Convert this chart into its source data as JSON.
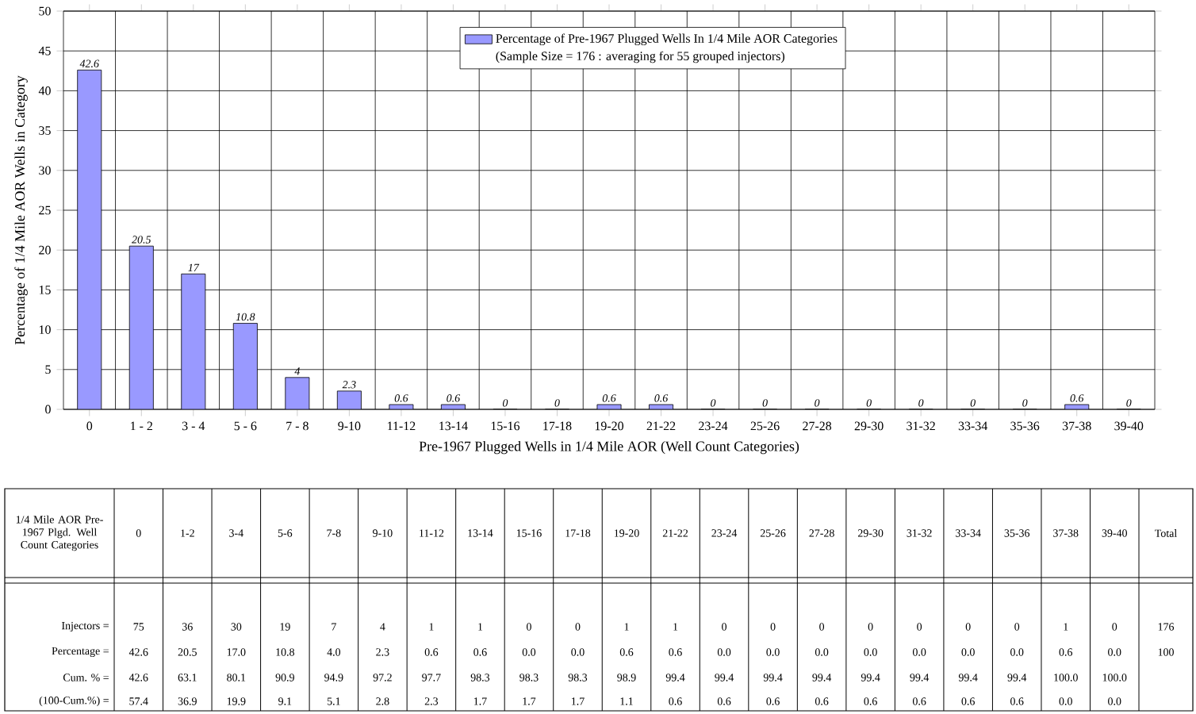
{
  "chart_data": {
    "type": "bar",
    "xlabel": "Pre-1967 Plugged Wells in 1/4 Mile AOR (Well Count Categories)",
    "ylabel": "Percentage of 1/4 Mile AOR Wells in Category",
    "categories": [
      "0",
      "1 - 2",
      "3 - 4",
      "5 - 6",
      "7 - 8",
      "9-10",
      "11-12",
      "13-14",
      "15-16",
      "17-18",
      "19-20",
      "21-22",
      "23-24",
      "25-26",
      "27-28",
      "29-30",
      "31-32",
      "33-34",
      "35-36",
      "37-38",
      "39-40"
    ],
    "series": [
      {
        "name": "Percentage of Pre-1967 Plugged Wells In 1/4 Mile AOR Categories",
        "color": "#9999ff",
        "values": [
          42.6,
          20.5,
          17,
          10.8,
          4,
          2.3,
          0.6,
          0.6,
          0,
          0,
          0.6,
          0.6,
          0,
          0,
          0,
          0,
          0,
          0,
          0,
          0.6,
          0
        ],
        "value_labels": [
          "42.6",
          "20.5",
          "17",
          "10.8",
          "4",
          "2.3",
          "0.6",
          "0.6",
          "0",
          "0",
          "0.6",
          "0.6",
          "0",
          "0",
          "0",
          "0",
          "0",
          "0",
          "0",
          "0.6",
          "0"
        ]
      }
    ],
    "ylim": [
      0,
      50
    ],
    "yticks": [
      0,
      5,
      10,
      15,
      20,
      25,
      30,
      35,
      40,
      45,
      50
    ],
    "grid": true,
    "legend": "top",
    "annotations": [
      "(Sample Size = 176 : averaging for 55 grouped injectors)",
      "1/4 Mile AOR Pre-1967 Plgd. Well Count Categories",
      "0",
      "1-2",
      "3-4",
      "5-6",
      "7-8",
      "9-10",
      "11-12",
      "13-14",
      "15-16",
      "17-18",
      "19-20",
      "21-22",
      "23-24",
      "25-26",
      "27-28",
      "29-30",
      "31-32",
      "33-34",
      "35-36",
      "37-38",
      "39-40",
      "Total",
      "Injectors =",
      "75",
      "36",
      "30",
      "19",
      "7",
      "4",
      "1",
      "1",
      "0",
      "0",
      "1",
      "1",
      "0",
      "0",
      "0",
      "0",
      "0",
      "0",
      "0",
      "1",
      "0",
      "176",
      "Percentage =",
      "42.6",
      "20.5",
      "17.0",
      "10.8",
      "4.0",
      "2.3",
      "0.6",
      "0.6",
      "0.0",
      "0.0",
      "0.6",
      "0.6",
      "0.0",
      "0.0",
      "0.0",
      "0.0",
      "0.0",
      "0.0",
      "0.0",
      "0.6",
      "0.0",
      "100",
      "Cum. % =",
      "42.6",
      "63.1",
      "80.1",
      "90.9",
      "94.9",
      "97.2",
      "97.7",
      "98.3",
      "98.3",
      "98.3",
      "98.9",
      "99.4",
      "99.4",
      "99.4",
      "99.4",
      "99.4",
      "99.4",
      "99.4",
      "99.4",
      "100.0",
      "100.0",
      "(100-Cum.%) =",
      "57.4",
      "36.9",
      "19.9",
      "9.1",
      "5.1",
      "2.8",
      "2.3",
      "1.7",
      "1.7",
      "1.7",
      "1.1",
      "0.6",
      "0.6",
      "0.6",
      "0.6",
      "0.6",
      "0.6",
      "0.6",
      "0.6",
      "0.0",
      "0.0"
    ]
  }
}
